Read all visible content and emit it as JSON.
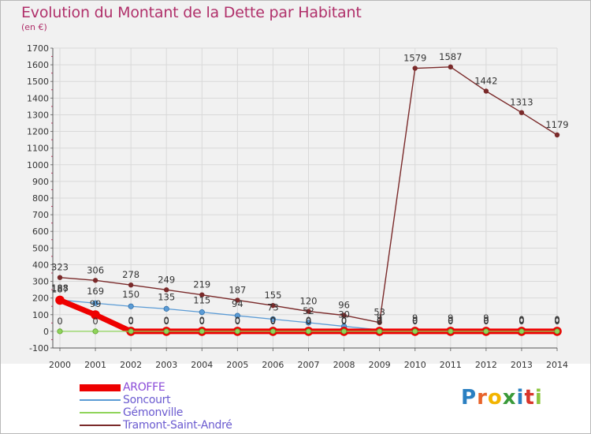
{
  "header": {
    "title": "Evolution du Montant de la Dette par Habitant",
    "unit": "(en €)"
  },
  "logo": {
    "text": "Proxiti",
    "letters": [
      {
        "c": "P",
        "color": "#2a7fc1"
      },
      {
        "c": "r",
        "color": "#e8632b"
      },
      {
        "c": "o",
        "color": "#f2b400"
      },
      {
        "c": "x",
        "color": "#3a9a3a"
      },
      {
        "c": "i",
        "color": "#2a7fc1"
      },
      {
        "c": "t",
        "color": "#d9362b"
      },
      {
        "c": "i",
        "color": "#8cc63f"
      }
    ]
  },
  "chart_data": {
    "type": "line",
    "title": "Evolution du Montant de la Dette par Habitant",
    "ylabel": "(en €)",
    "xlabel": "",
    "x": [
      2000,
      2001,
      2002,
      2003,
      2004,
      2005,
      2006,
      2007,
      2008,
      2009,
      2010,
      2011,
      2012,
      2013,
      2014
    ],
    "x_tick_labels": [
      "2000",
      "2001",
      "2002",
      "2003",
      "2004",
      "2005",
      "2006",
      "2007",
      "2008",
      "2009",
      "2010",
      "2011",
      "2012",
      "2013",
      "2014"
    ],
    "ylim": [
      -100,
      1700
    ],
    "y_ticks": [
      -100,
      0,
      100,
      200,
      300,
      400,
      500,
      600,
      700,
      800,
      900,
      1000,
      1100,
      1200,
      1300,
      1400,
      1500,
      1600,
      1700
    ],
    "grid": true,
    "legend_position": "bottom-left",
    "series": [
      {
        "name": "Tramont-Saint-André",
        "color": "#7a2a2a",
        "values": [
          323,
          306,
          278,
          249,
          219,
          187,
          155,
          120,
          96,
          53,
          1579,
          1587,
          1442,
          1313,
          1179
        ]
      },
      {
        "name": "Soncourt",
        "color": "#5b9bd5",
        "values": [
          188,
          169,
          150,
          135,
          115,
          94,
          73,
          52,
          30,
          9,
          9,
          9,
          9,
          0,
          0
        ]
      },
      {
        "name": "Gémonville",
        "color": "#8fd45a",
        "values": [
          0,
          0,
          0,
          0,
          0,
          0,
          0,
          0,
          0,
          0,
          0,
          0,
          0,
          0,
          0
        ]
      },
      {
        "name": "AROFFE",
        "color": "#ee0000",
        "values": [
          187,
          99,
          0,
          0,
          0,
          0,
          0,
          0,
          0,
          0,
          0,
          0,
          0,
          0,
          0
        ]
      }
    ],
    "data_labels": [
      {
        "series": "Tramont-Saint-André",
        "labels": [
          "323",
          "306",
          "278",
          "249",
          "219",
          "187",
          "155",
          "120",
          "96",
          "53",
          "1579",
          "1587",
          "1442",
          "1313",
          "1179"
        ]
      },
      {
        "series": "Soncourt",
        "labels": [
          "188",
          "169",
          "150",
          "135",
          "115",
          "94",
          "73",
          "52",
          "30",
          "9",
          "9",
          "9",
          "9",
          "0",
          "0"
        ]
      },
      {
        "series": "Gémonville",
        "labels": [
          "0",
          "0",
          "0",
          "0",
          "0",
          "0",
          "0",
          "0",
          "0",
          "0",
          "0",
          "0",
          "0",
          "0",
          "0"
        ]
      },
      {
        "series": "AROFFE",
        "labels": [
          "187",
          "99",
          "0",
          "0",
          "0",
          "0",
          "0",
          "0",
          "0",
          "0",
          "0",
          "0",
          "0",
          "0",
          "0"
        ]
      }
    ]
  },
  "legend": [
    {
      "label": "AROFFE",
      "color": "#ee0000",
      "thick": true
    },
    {
      "label": "Soncourt",
      "color": "#5b9bd5",
      "thick": false
    },
    {
      "label": "Gémonville",
      "color": "#8fd45a",
      "thick": false
    },
    {
      "label": "Tramont-Saint-André",
      "color": "#7a2a2a",
      "thick": false
    }
  ]
}
